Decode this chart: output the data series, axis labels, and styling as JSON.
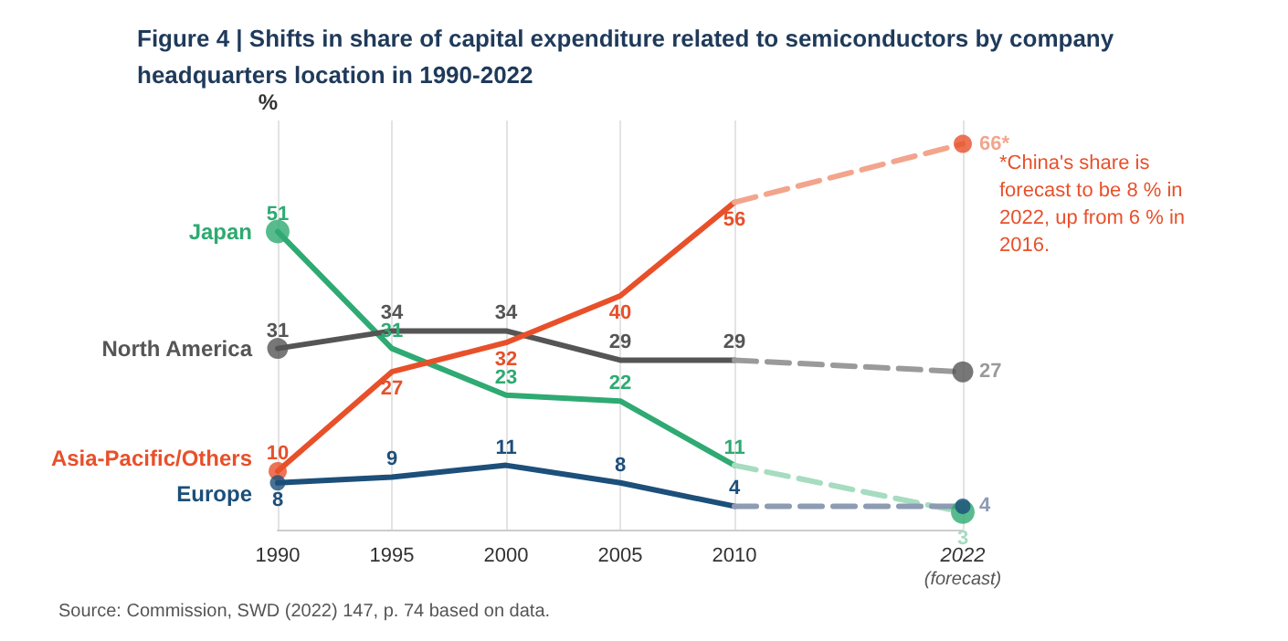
{
  "chart_data": {
    "type": "line",
    "title": "Figure 4 | Shifts in share of capital expenditure related to semiconductors by company headquarters location in 1990-2022",
    "ylabel": "%",
    "categories": [
      "1990",
      "1995",
      "2000",
      "2005",
      "2010",
      null,
      "2022\n(forecast)"
    ],
    "ylim": [
      0,
      70
    ],
    "grid": "x",
    "legend": false,
    "series": [
      {
        "name": "Japan",
        "color": "#2eaa72",
        "values": [
          51,
          31,
          23,
          22,
          11,
          null,
          null
        ],
        "value_labels": [
          "51",
          "31",
          "23",
          "22",
          "11",
          null,
          null
        ]
      },
      {
        "color": "#a6dcc0",
        "line_style": "dashed",
        "values": [
          null,
          null,
          null,
          null,
          11,
          null,
          3
        ],
        "value_labels": [
          null,
          null,
          null,
          null,
          null,
          null,
          "3"
        ]
      },
      {
        "name": "North America",
        "color": "#555555",
        "values": [
          31,
          34,
          34,
          29,
          29,
          null,
          null
        ],
        "value_labels": [
          "31",
          "34",
          "34",
          "29",
          "29",
          null,
          null
        ]
      },
      {
        "color": "#9a9a9a",
        "line_style": "dashed",
        "values": [
          null,
          null,
          null,
          null,
          29,
          null,
          27
        ],
        "value_labels": [
          null,
          null,
          null,
          null,
          null,
          null,
          "27"
        ]
      },
      {
        "name": "Asia-Pacific/Others",
        "color": "#e8502a",
        "values": [
          10,
          27,
          32,
          40,
          56,
          null,
          null
        ],
        "value_labels": [
          "10",
          "27",
          "32",
          "40",
          "56",
          null,
          null
        ]
      },
      {
        "color": "#f2a58c",
        "line_style": "dashed",
        "values": [
          null,
          null,
          null,
          null,
          56,
          null,
          66
        ],
        "value_labels": [
          null,
          null,
          null,
          null,
          null,
          null,
          "66*"
        ]
      },
      {
        "name": "Europe",
        "color": "#1c4f7a",
        "values": [
          8,
          9,
          11,
          8,
          4,
          null,
          null
        ],
        "value_labels": [
          "8",
          "9",
          "11",
          "8",
          "4",
          null,
          null
        ]
      },
      {
        "color": "#8d9bb3",
        "line_style": "dashed",
        "values": [
          null,
          null,
          null,
          null,
          4,
          null,
          4
        ],
        "value_labels": [
          null,
          null,
          null,
          null,
          null,
          null,
          "4"
        ]
      },
      {
        "type": "scatter",
        "marker": "circle",
        "color": "#2eaa72",
        "values": [
          51,
          null,
          null,
          null,
          null,
          null,
          3
        ]
      },
      {
        "type": "scatter",
        "marker": "circle",
        "color": "#555555",
        "values": [
          31,
          null,
          null,
          null,
          null,
          null,
          27
        ]
      },
      {
        "type": "scatter",
        "marker": "circle",
        "color": "#e8502a",
        "values": [
          10,
          null,
          null,
          null,
          null,
          null,
          66
        ]
      },
      {
        "type": "scatter",
        "marker": "circle",
        "color": "#1c4f7a",
        "values": [
          8,
          null,
          null,
          null,
          null,
          null,
          4
        ]
      }
    ],
    "annotations": [
      "*China's share is forecast to be 8 % in 2022, up from 6 % in 2016.",
      "Source: Commission, SWD (2022) 147, p. 74 based on data."
    ]
  }
}
